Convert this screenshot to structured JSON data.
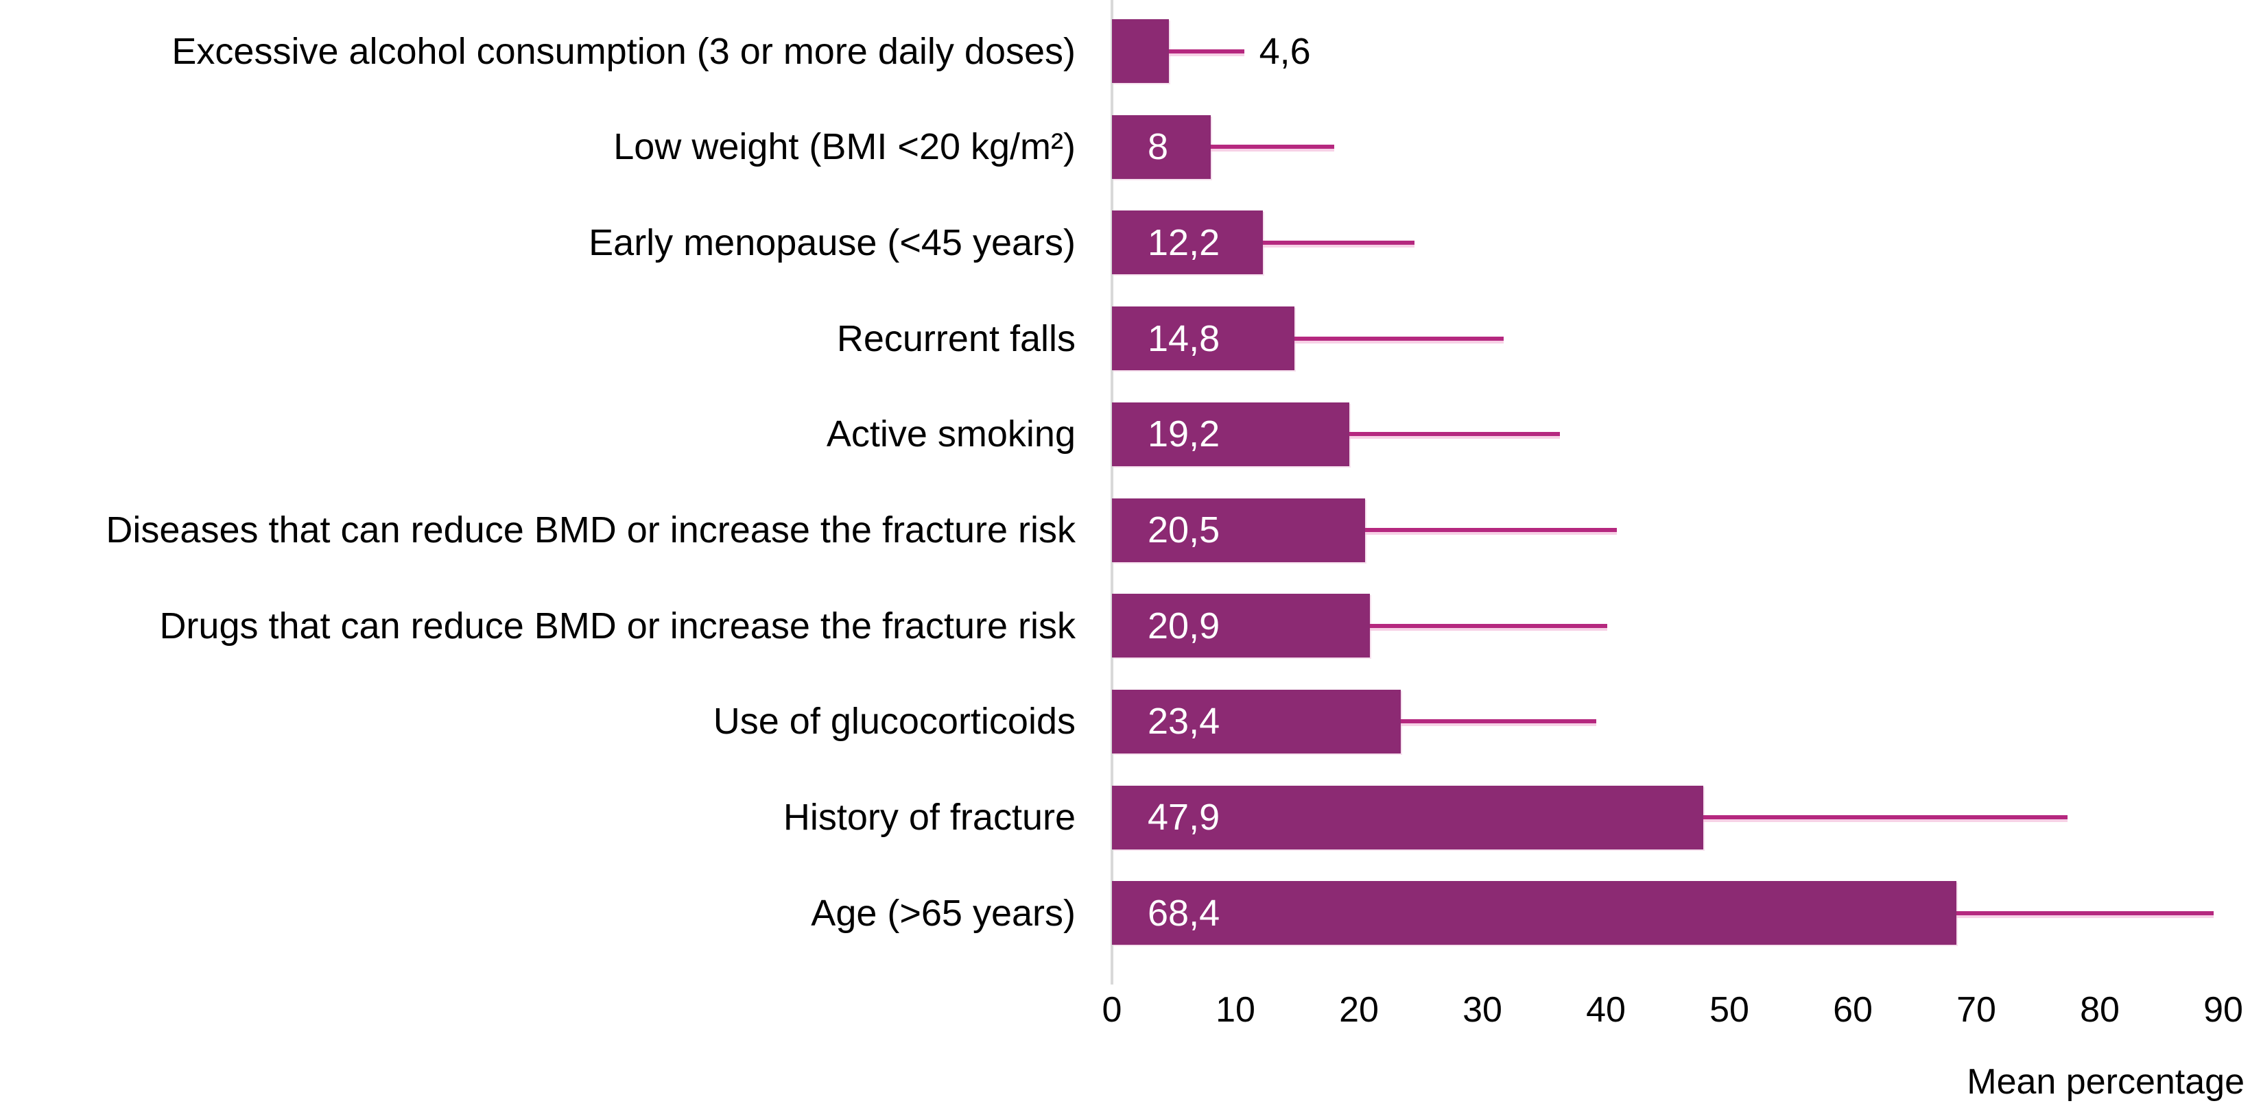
{
  "chart_data": {
    "type": "bar",
    "orientation": "horizontal",
    "title": "",
    "xlabel": "Mean percentage",
    "ylabel": "",
    "xlim": [
      0,
      90
    ],
    "grid": false,
    "legend": "none",
    "x_ticks": [
      "0",
      "10",
      "20",
      "30",
      "40",
      "50",
      "60",
      "70",
      "80",
      "90"
    ],
    "categories": [
      "Excessive alcohol consumption (3 or more daily doses)",
      "Low weight (BMI <20 kg/m²)",
      "Early menopause (<45 years)",
      "Recurrent falls",
      "Active smoking",
      "Diseases that can reduce BMD or increase the fracture risk",
      "Drugs that can reduce BMD or increase the fracture risk",
      "Use of glucocorticoids",
      "History of fracture",
      "Age (>65 years)"
    ],
    "values": [
      4.6,
      8,
      12.2,
      14.8,
      19.2,
      20.5,
      20.9,
      23.4,
      47.9,
      68.4
    ],
    "value_labels": [
      "4,6",
      "8",
      "12,2",
      "14,8",
      "19,2",
      "20,5",
      "20,9",
      "23,4",
      "47,9",
      "68,4"
    ],
    "error_upper": [
      10.7,
      18,
      24.5,
      31.7,
      36.3,
      40.9,
      40.1,
      39.2,
      77.4,
      89.2
    ],
    "label_inside": [
      false,
      true,
      true,
      true,
      true,
      true,
      true,
      true,
      true,
      true
    ],
    "colors": {
      "bar": "#8C2A73",
      "error_bar": "#B5287F",
      "axis_line": "#D9D9D9",
      "text": "#000000",
      "value_label_inside": "#FFFFFF",
      "value_label_outside": "#000000",
      "background": "#FFFFFF"
    }
  }
}
